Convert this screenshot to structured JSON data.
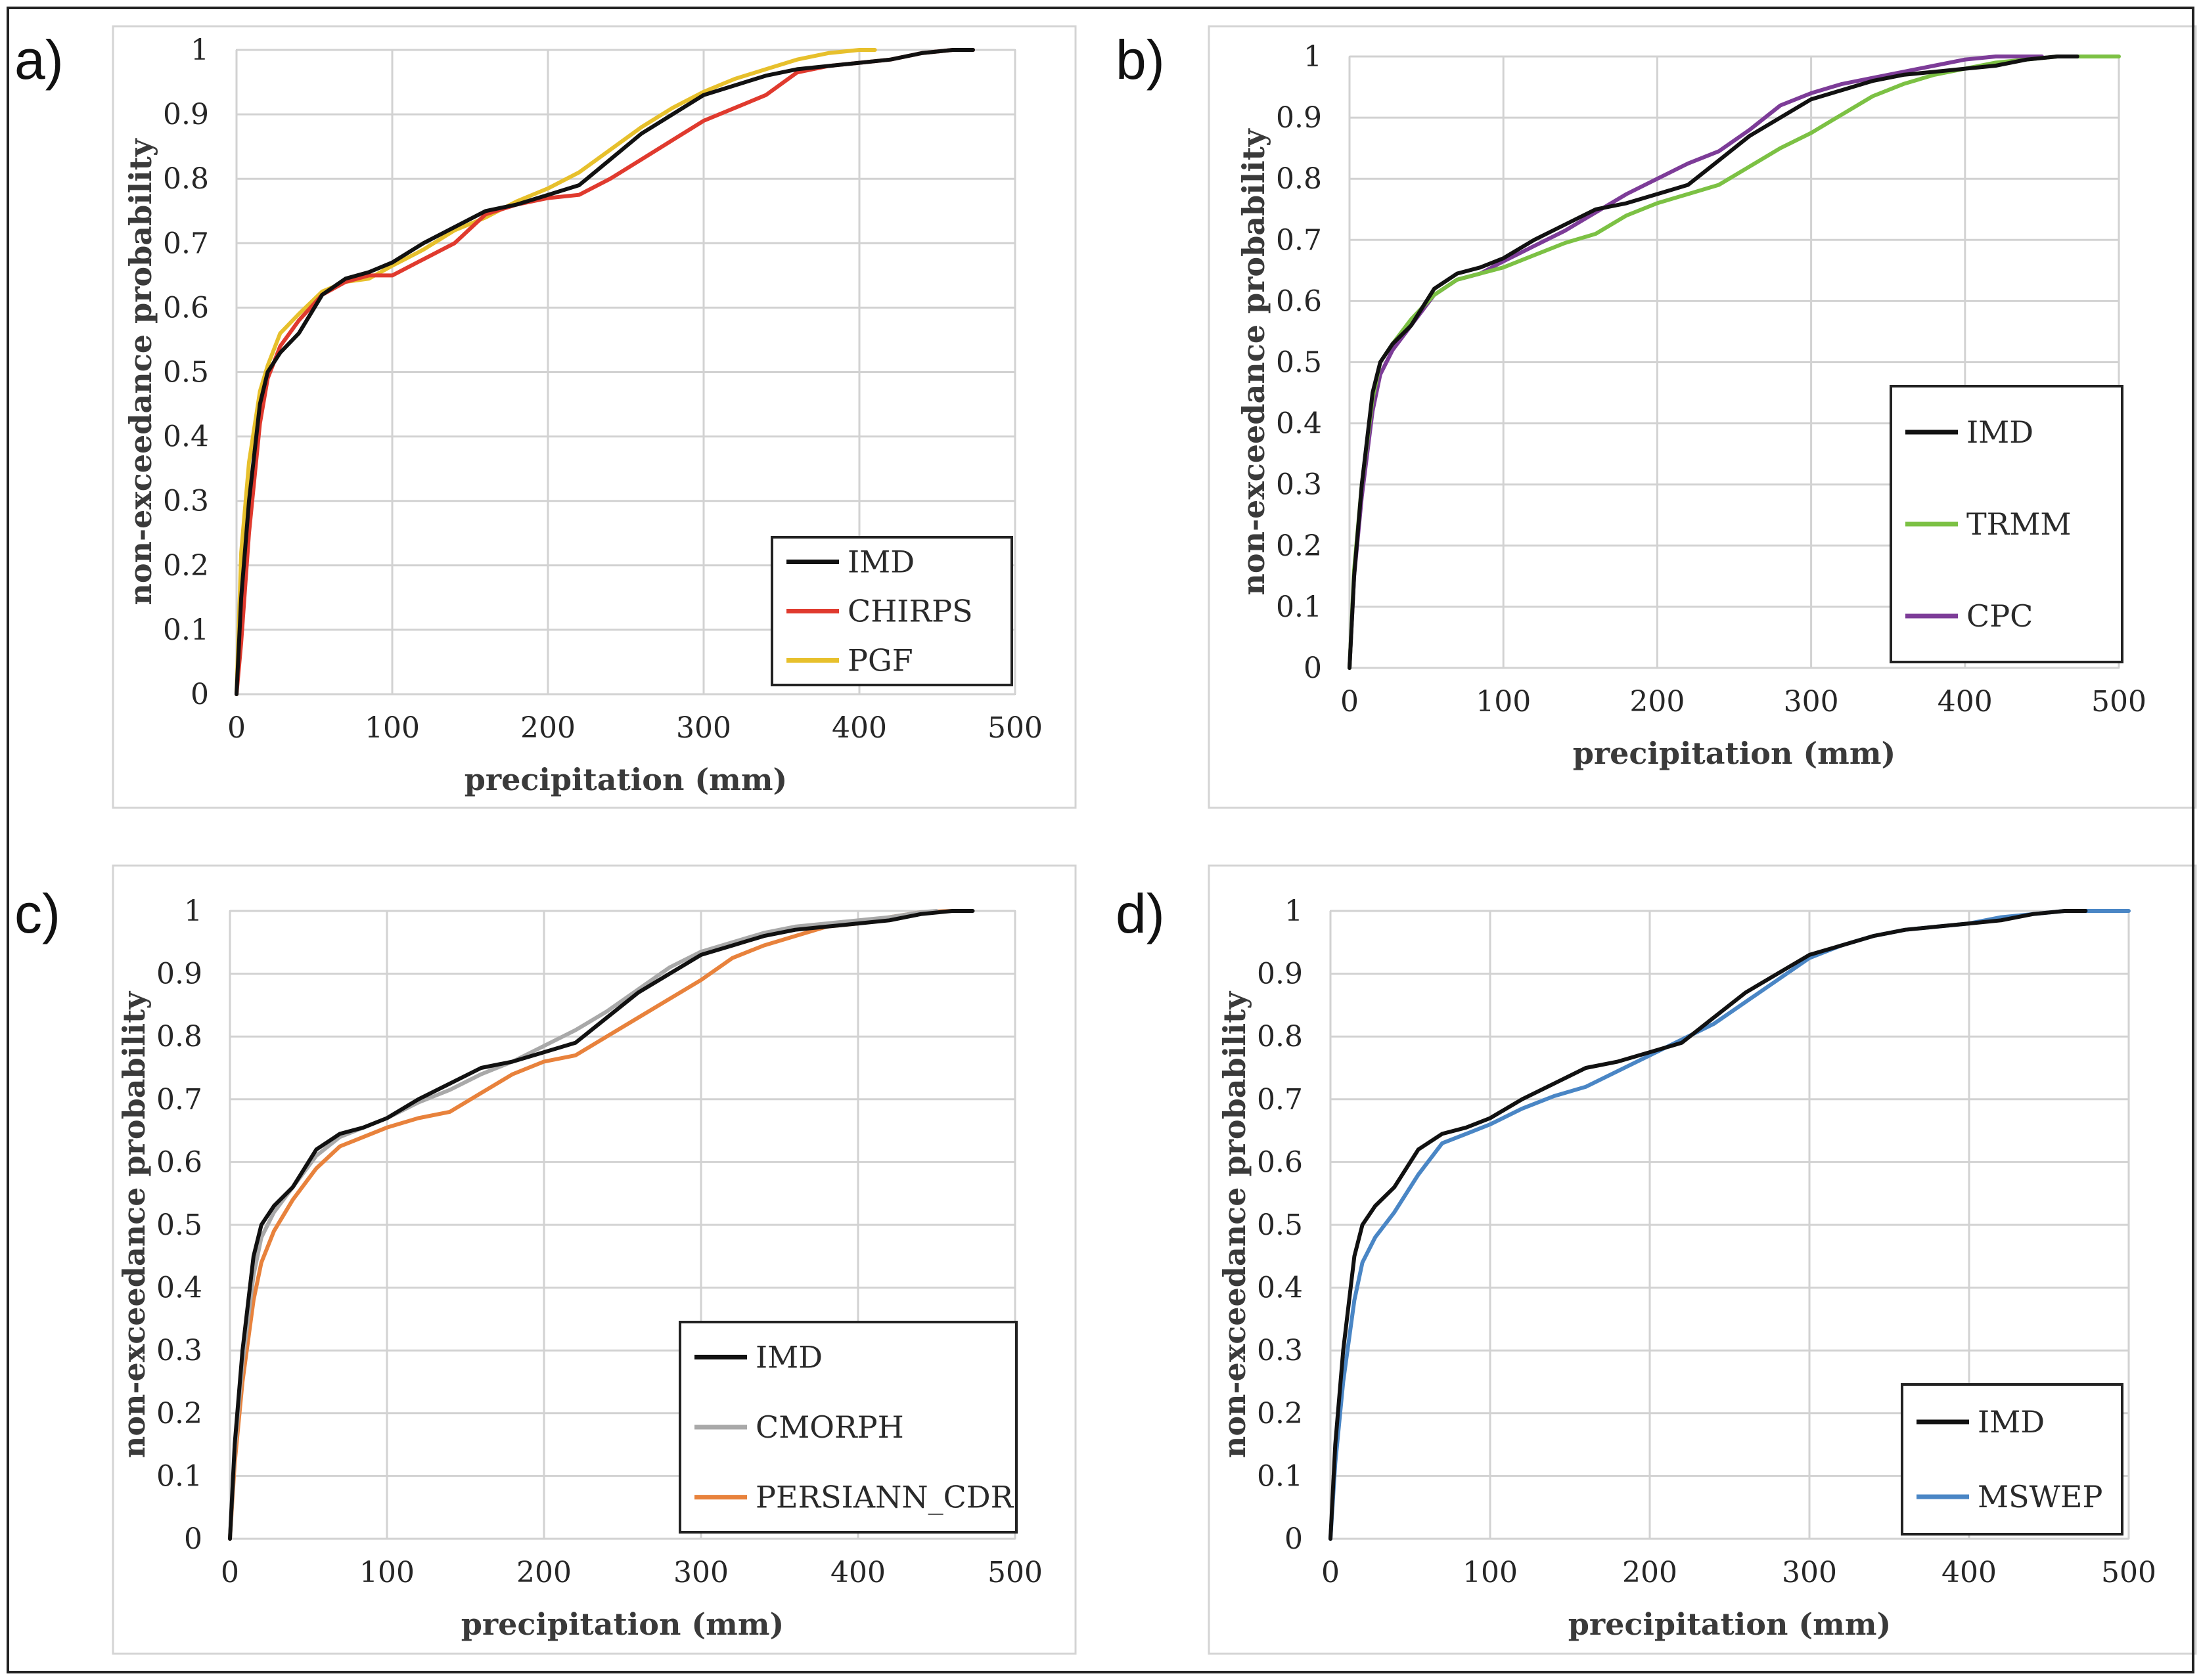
{
  "figure": {
    "shared": {
      "xlabel": "precipitation (mm)",
      "ylabel": "non-exceedance probability",
      "xticks": [
        "0",
        "100",
        "200",
        "300",
        "400",
        "500"
      ],
      "yticks": [
        "0",
        "0.1",
        "0.2",
        "0.3",
        "0.4",
        "0.5",
        "0.6",
        "0.7",
        "0.8",
        "0.9",
        "1"
      ]
    }
  },
  "chart_data": [
    {
      "panel": "a)",
      "type": "line",
      "title": "",
      "xlabel": "precipitation (mm)",
      "ylabel": "non-exceedance probability",
      "xlim": [
        0,
        500
      ],
      "ylim": [
        0,
        1
      ],
      "grid": true,
      "legend_position": "bottom-right",
      "series": [
        {
          "name": "IMD",
          "color": "#111111",
          "x": [
            0,
            3,
            8,
            15,
            20,
            28,
            40,
            55,
            70,
            85,
            100,
            120,
            140,
            160,
            180,
            200,
            220,
            240,
            260,
            280,
            300,
            320,
            340,
            360,
            380,
            400,
            420,
            440,
            460,
            473
          ],
          "y": [
            0,
            0.15,
            0.3,
            0.45,
            0.5,
            0.53,
            0.56,
            0.62,
            0.645,
            0.655,
            0.67,
            0.7,
            0.725,
            0.75,
            0.76,
            0.775,
            0.79,
            0.83,
            0.87,
            0.9,
            0.93,
            0.945,
            0.96,
            0.97,
            0.975,
            0.98,
            0.985,
            0.995,
            1.0,
            1.0
          ]
        },
        {
          "name": "CHIRPS",
          "color": "#e03a2e",
          "x": [
            0,
            3,
            8,
            15,
            20,
            28,
            40,
            55,
            70,
            85,
            100,
            120,
            140,
            160,
            180,
            200,
            220,
            240,
            260,
            280,
            300,
            320,
            340,
            360,
            380,
            400,
            420,
            440,
            460,
            473
          ],
          "y": [
            0,
            0.08,
            0.25,
            0.42,
            0.49,
            0.54,
            0.58,
            0.62,
            0.64,
            0.65,
            0.65,
            0.675,
            0.7,
            0.745,
            0.76,
            0.77,
            0.775,
            0.8,
            0.83,
            0.86,
            0.89,
            0.91,
            0.93,
            0.965,
            0.975,
            0.98,
            0.985,
            0.995,
            1.0,
            1.0
          ]
        },
        {
          "name": "PGF",
          "color": "#e7c02c",
          "x": [
            0,
            3,
            8,
            15,
            20,
            28,
            40,
            55,
            70,
            85,
            100,
            120,
            140,
            160,
            180,
            200,
            220,
            240,
            260,
            280,
            300,
            320,
            340,
            360,
            380,
            400,
            410
          ],
          "y": [
            0,
            0.22,
            0.36,
            0.47,
            0.51,
            0.56,
            0.59,
            0.625,
            0.64,
            0.645,
            0.665,
            0.69,
            0.72,
            0.74,
            0.765,
            0.785,
            0.81,
            0.845,
            0.88,
            0.91,
            0.935,
            0.955,
            0.97,
            0.985,
            0.995,
            1.0,
            1.0
          ]
        }
      ]
    },
    {
      "panel": "b)",
      "type": "line",
      "title": "",
      "xlabel": "precipitation (mm)",
      "ylabel": "non-exceedance probability",
      "xlim": [
        0,
        500
      ],
      "ylim": [
        0,
        1
      ],
      "grid": true,
      "legend_position": "bottom-right",
      "series": [
        {
          "name": "IMD",
          "color": "#111111",
          "x": [
            0,
            3,
            8,
            15,
            20,
            28,
            40,
            55,
            70,
            85,
            100,
            120,
            140,
            160,
            180,
            200,
            220,
            240,
            260,
            280,
            300,
            320,
            340,
            360,
            380,
            400,
            420,
            440,
            460,
            473
          ],
          "y": [
            0,
            0.15,
            0.3,
            0.45,
            0.5,
            0.53,
            0.56,
            0.62,
            0.645,
            0.655,
            0.67,
            0.7,
            0.725,
            0.75,
            0.76,
            0.775,
            0.79,
            0.83,
            0.87,
            0.9,
            0.93,
            0.945,
            0.96,
            0.97,
            0.975,
            0.98,
            0.985,
            0.995,
            1.0,
            1.0
          ]
        },
        {
          "name": "TRMM",
          "color": "#7cc144",
          "x": [
            0,
            3,
            8,
            15,
            20,
            28,
            40,
            55,
            70,
            85,
            100,
            120,
            140,
            160,
            180,
            200,
            220,
            240,
            260,
            280,
            300,
            320,
            340,
            360,
            380,
            400,
            420,
            440,
            460,
            480,
            500
          ],
          "y": [
            0,
            0.16,
            0.3,
            0.44,
            0.5,
            0.53,
            0.57,
            0.61,
            0.635,
            0.645,
            0.655,
            0.675,
            0.695,
            0.71,
            0.74,
            0.76,
            0.775,
            0.79,
            0.82,
            0.85,
            0.875,
            0.905,
            0.935,
            0.955,
            0.97,
            0.98,
            0.99,
            0.995,
            1.0,
            1.0,
            1.0
          ]
        },
        {
          "name": "CPC",
          "color": "#7d3c98",
          "x": [
            0,
            3,
            8,
            15,
            20,
            28,
            40,
            55,
            70,
            85,
            100,
            120,
            140,
            160,
            180,
            200,
            220,
            240,
            260,
            280,
            300,
            320,
            340,
            360,
            380,
            400,
            420,
            440,
            450
          ],
          "y": [
            0,
            0.15,
            0.28,
            0.42,
            0.48,
            0.52,
            0.56,
            0.61,
            0.635,
            0.645,
            0.665,
            0.69,
            0.715,
            0.745,
            0.775,
            0.8,
            0.825,
            0.845,
            0.88,
            0.92,
            0.94,
            0.955,
            0.965,
            0.975,
            0.985,
            0.995,
            1.0,
            1.0,
            1.0
          ]
        }
      ]
    },
    {
      "panel": "c)",
      "type": "line",
      "title": "",
      "xlabel": "precipitation (mm)",
      "ylabel": "non-exceedance probability",
      "xlim": [
        0,
        500
      ],
      "ylim": [
        0,
        1
      ],
      "grid": true,
      "legend_position": "bottom-right",
      "series": [
        {
          "name": "IMD",
          "color": "#111111",
          "x": [
            0,
            3,
            8,
            15,
            20,
            28,
            40,
            55,
            70,
            85,
            100,
            120,
            140,
            160,
            180,
            200,
            220,
            240,
            260,
            280,
            300,
            320,
            340,
            360,
            380,
            400,
            420,
            440,
            460,
            473
          ],
          "y": [
            0,
            0.15,
            0.3,
            0.45,
            0.5,
            0.53,
            0.56,
            0.62,
            0.645,
            0.655,
            0.67,
            0.7,
            0.725,
            0.75,
            0.76,
            0.775,
            0.79,
            0.83,
            0.87,
            0.9,
            0.93,
            0.945,
            0.96,
            0.97,
            0.975,
            0.98,
            0.985,
            0.995,
            1.0,
            1.0
          ]
        },
        {
          "name": "CMORPH",
          "color": "#a9a9a9",
          "x": [
            0,
            3,
            8,
            15,
            20,
            28,
            40,
            55,
            70,
            85,
            100,
            120,
            140,
            160,
            180,
            200,
            220,
            240,
            260,
            280,
            300,
            320,
            340,
            360,
            380,
            400,
            420,
            440,
            450
          ],
          "y": [
            0,
            0.14,
            0.28,
            0.42,
            0.48,
            0.52,
            0.56,
            0.61,
            0.64,
            0.655,
            0.67,
            0.695,
            0.715,
            0.74,
            0.76,
            0.785,
            0.81,
            0.84,
            0.875,
            0.91,
            0.935,
            0.95,
            0.965,
            0.975,
            0.98,
            0.985,
            0.99,
            0.998,
            1.0
          ]
        },
        {
          "name": "PERSIANN_CDR",
          "color": "#e8823c",
          "x": [
            0,
            3,
            8,
            15,
            20,
            28,
            40,
            55,
            70,
            85,
            100,
            120,
            140,
            160,
            180,
            200,
            220,
            240,
            260,
            280,
            300,
            320,
            340,
            360,
            380,
            400,
            420,
            440,
            460
          ],
          "y": [
            0,
            0.12,
            0.25,
            0.38,
            0.44,
            0.49,
            0.54,
            0.59,
            0.625,
            0.64,
            0.655,
            0.67,
            0.68,
            0.71,
            0.74,
            0.76,
            0.77,
            0.8,
            0.83,
            0.86,
            0.89,
            0.925,
            0.945,
            0.96,
            0.975,
            0.98,
            0.99,
            0.998,
            1.0
          ]
        }
      ]
    },
    {
      "panel": "d)",
      "type": "line",
      "title": "",
      "xlabel": "precipitation (mm)",
      "ylabel": "non-exceedance probability",
      "xlim": [
        0,
        500
      ],
      "ylim": [
        0,
        1
      ],
      "grid": true,
      "legend_position": "bottom-right",
      "series": [
        {
          "name": "IMD",
          "color": "#111111",
          "x": [
            0,
            3,
            8,
            15,
            20,
            28,
            40,
            55,
            70,
            85,
            100,
            120,
            140,
            160,
            180,
            200,
            220,
            240,
            260,
            280,
            300,
            320,
            340,
            360,
            380,
            400,
            420,
            440,
            460,
            473
          ],
          "y": [
            0,
            0.15,
            0.3,
            0.45,
            0.5,
            0.53,
            0.56,
            0.62,
            0.645,
            0.655,
            0.67,
            0.7,
            0.725,
            0.75,
            0.76,
            0.775,
            0.79,
            0.83,
            0.87,
            0.9,
            0.93,
            0.945,
            0.96,
            0.97,
            0.975,
            0.98,
            0.985,
            0.995,
            1.0,
            1.0
          ]
        },
        {
          "name": "MSWEP",
          "color": "#4a86c5",
          "x": [
            0,
            3,
            8,
            15,
            20,
            28,
            40,
            55,
            70,
            85,
            100,
            120,
            140,
            160,
            180,
            200,
            220,
            240,
            260,
            280,
            300,
            320,
            340,
            360,
            380,
            400,
            420,
            440,
            460,
            480,
            500
          ],
          "y": [
            0,
            0.12,
            0.25,
            0.38,
            0.44,
            0.48,
            0.52,
            0.58,
            0.63,
            0.645,
            0.66,
            0.685,
            0.705,
            0.72,
            0.745,
            0.77,
            0.795,
            0.82,
            0.855,
            0.89,
            0.925,
            0.945,
            0.96,
            0.97,
            0.975,
            0.98,
            0.99,
            0.995,
            1.0,
            1.0,
            1.0
          ]
        }
      ]
    }
  ]
}
